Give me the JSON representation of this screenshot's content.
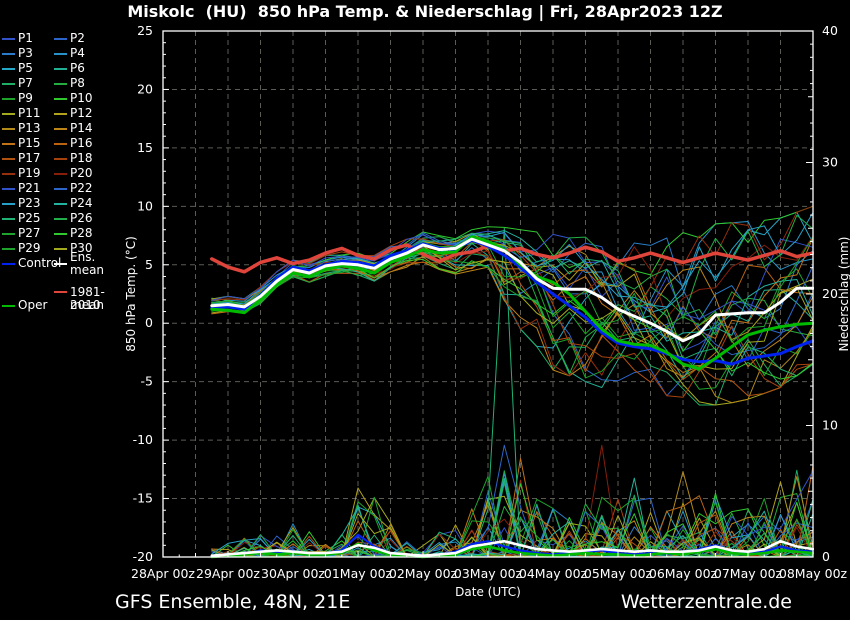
{
  "title": "Miskolc  (HU)  850 hPa Temp. & Niederschlag | Fri, 28Apr2023 12Z",
  "footer": {
    "left": "GFS Ensemble, 48N, 21E",
    "right": "Wetterzentrale.de"
  },
  "legend": {
    "members": [
      {
        "label": "P1",
        "color": "#3252c8"
      },
      {
        "label": "P2",
        "color": "#2d64c8"
      },
      {
        "label": "P3",
        "color": "#2a7cc8"
      },
      {
        "label": "P4",
        "color": "#2792c8"
      },
      {
        "label": "P5",
        "color": "#25a8c8"
      },
      {
        "label": "P6",
        "color": "#21b094"
      },
      {
        "label": "P7",
        "color": "#1fae66"
      },
      {
        "label": "P8",
        "color": "#23ac40"
      },
      {
        "label": "P9",
        "color": "#1da22a"
      },
      {
        "label": "P10",
        "color": "#2fc82f"
      },
      {
        "label": "P11",
        "color": "#a4aa1e"
      },
      {
        "label": "P12",
        "color": "#b2a21c"
      },
      {
        "label": "P13",
        "color": "#b28a1a"
      },
      {
        "label": "P14",
        "color": "#bd8418"
      },
      {
        "label": "P15",
        "color": "#c27315"
      },
      {
        "label": "P16",
        "color": "#bb6212"
      },
      {
        "label": "P17",
        "color": "#b25210"
      },
      {
        "label": "P18",
        "color": "#a6420e"
      },
      {
        "label": "P19",
        "color": "#962f0d"
      },
      {
        "label": "P20",
        "color": "#851f0b"
      },
      {
        "label": "P21",
        "color": "#3252c8"
      },
      {
        "label": "P22",
        "color": "#2d66c8"
      },
      {
        "label": "P23",
        "color": "#27a0c8"
      },
      {
        "label": "P24",
        "color": "#22b2a0"
      },
      {
        "label": "P25",
        "color": "#20b274"
      },
      {
        "label": "P26",
        "color": "#22ae48"
      },
      {
        "label": "P27",
        "color": "#1ea32e"
      },
      {
        "label": "P28",
        "color": "#2fc82f"
      },
      {
        "label": "P29",
        "color": "#1da32b"
      },
      {
        "label": "P30",
        "color": "#a4aa1e"
      }
    ],
    "control": {
      "label": "Control",
      "color": "#0022ee"
    },
    "ens_mean": {
      "label": "Ens. mean",
      "color": "#ffffff"
    },
    "clim": {
      "label_line1": "1981-2010",
      "label_line2": "mean",
      "color": "#e0453c"
    },
    "oper": {
      "label": "Oper",
      "color": "#00bb00"
    }
  },
  "chart_data": {
    "type": "line",
    "title": "Miskolc  (HU)  850 hPa Temp. & Niederschlag | Fri, 28Apr2023 12Z",
    "xlabel": "Date (UTC)",
    "x_tick_labels": [
      "28Apr 00z",
      "29Apr 00z",
      "30Apr 00z",
      "01May 00z",
      "02May 00z",
      "03May 00z",
      "04May 00z",
      "05May 00z",
      "06May 00z",
      "07May 00z",
      "08May 00z"
    ],
    "y_left": {
      "label": "850 hPa Temp. (°C)",
      "min": -20,
      "max": 25,
      "ticks": [
        25,
        20,
        15,
        10,
        5,
        0,
        -5,
        -10,
        -15,
        -20
      ]
    },
    "y_right": {
      "label": "Niederschlag (mm)",
      "min": 0,
      "max": 40,
      "ticks": [
        40,
        30,
        20,
        10,
        0
      ]
    },
    "grid": {
      "x_step_days": 0.5,
      "y_step_degC": 5
    },
    "time_days": {
      "start": 0.75,
      "step": 0.25,
      "count": 38,
      "note": "days after 28Apr2023 00z; 6-hourly points from 28Apr 18z to 08May 00z"
    },
    "series": {
      "ens_mean": [
        1.5,
        1.6,
        1.4,
        2.3,
        3.6,
        4.6,
        4.3,
        4.9,
        5.1,
        5.0,
        4.7,
        5.5,
        6.0,
        6.7,
        6.3,
        6.4,
        7.2,
        6.7,
        6.2,
        5.2,
        3.8,
        3.0,
        2.9,
        2.9,
        2.2,
        1.2,
        0.6,
        0.0,
        -0.7,
        -1.5,
        -0.9,
        0.7,
        0.8,
        0.9,
        0.9,
        1.8,
        3.0,
        3.0
      ],
      "control": [
        1.3,
        1.4,
        1.2,
        2.4,
        3.8,
        4.8,
        4.5,
        5.0,
        5.3,
        5.2,
        4.9,
        5.8,
        6.2,
        6.8,
        6.4,
        6.3,
        7.1,
        6.6,
        5.8,
        4.8,
        3.5,
        2.5,
        1.5,
        0.5,
        -0.8,
        -1.7,
        -2.0,
        -2.2,
        -2.6,
        -3.1,
        -3.3,
        -3.2,
        -3.5,
        -3.0,
        -2.8,
        -2.6,
        -2.0,
        -1.5
      ],
      "oper": [
        1.2,
        1.1,
        0.9,
        2.0,
        3.3,
        4.3,
        4.0,
        4.6,
        4.9,
        4.7,
        4.3,
        5.2,
        5.7,
        6.3,
        6.0,
        6.1,
        7.4,
        7.0,
        6.3,
        5.0,
        4.0,
        3.5,
        2.5,
        1.0,
        -0.5,
        -1.5,
        -1.8,
        -1.9,
        -2.5,
        -3.5,
        -3.9,
        -3.0,
        -2.0,
        -1.0,
        -0.6,
        -0.3,
        -0.1,
        0.0
      ],
      "clim_mean": [
        5.5,
        4.8,
        4.4,
        5.2,
        5.6,
        5.1,
        5.4,
        6.0,
        6.4,
        5.8,
        5.5,
        6.3,
        6.7,
        5.9,
        5.3,
        5.9,
        6.1,
        6.6,
        6.2,
        6.4,
        5.9,
        5.6,
        6.0,
        6.5,
        6.1,
        5.3,
        5.6,
        6.0,
        5.6,
        5.2,
        5.6,
        6.0,
        5.7,
        5.4,
        5.8,
        6.2,
        5.7,
        6.0
      ]
    },
    "envelope": {
      "low": [
        0.8,
        0.9,
        0.7,
        1.6,
        2.9,
        3.9,
        3.5,
        4.0,
        4.2,
        4.0,
        3.6,
        4.4,
        4.8,
        5.2,
        4.6,
        4.2,
        4.5,
        4.8,
        1.5,
        -0.5,
        -2.0,
        -4.0,
        -4.5,
        -5.0,
        -5.5,
        -5.5,
        -5.8,
        -6.0,
        -6.2,
        -6.5,
        -7.0,
        -7.0,
        -6.8,
        -6.5,
        -6.0,
        -5.5,
        -4.5,
        -3.5
      ],
      "high": [
        2.2,
        2.3,
        2.1,
        3.1,
        4.4,
        5.4,
        5.2,
        5.8,
        6.1,
        6.0,
        5.8,
        6.6,
        7.2,
        7.8,
        7.5,
        7.4,
        8.0,
        8.3,
        8.2,
        8.0,
        7.8,
        7.6,
        7.5,
        7.6,
        7.7,
        7.8,
        7.8,
        7.9,
        8.0,
        8.2,
        8.3,
        8.5,
        8.6,
        8.7,
        8.8,
        9.0,
        9.5,
        10.0
      ]
    },
    "precip": {
      "ens_mean": [
        0.1,
        0.2,
        0.3,
        0.4,
        0.5,
        0.4,
        0.3,
        0.3,
        0.4,
        0.9,
        0.7,
        0.3,
        0.2,
        0.1,
        0.2,
        0.3,
        0.8,
        1.0,
        1.2,
        0.9,
        0.6,
        0.5,
        0.4,
        0.5,
        0.6,
        0.5,
        0.4,
        0.5,
        0.4,
        0.4,
        0.5,
        0.8,
        0.5,
        0.4,
        0.6,
        1.2,
        0.8,
        0.6
      ],
      "control": [
        0.1,
        0.2,
        0.2,
        0.5,
        0.4,
        0.3,
        0.2,
        0.3,
        0.5,
        1.7,
        0.8,
        0.3,
        0.2,
        0.1,
        0.2,
        0.4,
        1.0,
        1.2,
        0.8,
        0.5,
        0.3,
        0.2,
        0.3,
        0.4,
        0.5,
        0.3,
        0.2,
        0.3,
        0.2,
        0.3,
        0.6,
        0.9,
        0.4,
        0.3,
        0.4,
        0.8,
        0.5,
        0.4
      ],
      "oper": [
        0.0,
        0.1,
        0.2,
        0.3,
        0.2,
        0.3,
        0.2,
        0.2,
        0.3,
        1.0,
        0.5,
        0.2,
        0.1,
        0.0,
        0.1,
        0.2,
        0.6,
        0.8,
        0.5,
        0.3,
        0.2,
        0.1,
        0.2,
        0.3,
        0.2,
        0.2,
        0.1,
        0.2,
        0.3,
        0.2,
        0.4,
        0.6,
        0.3,
        0.2,
        0.3,
        0.5,
        0.4,
        0.3
      ],
      "activity": [
        0.5,
        1.0,
        1.5,
        1.5,
        2.0,
        2.0,
        1.5,
        1.0,
        1.5,
        4.5,
        4.0,
        2.0,
        1.0,
        1.0,
        1.5,
        2.0,
        3.0,
        5.0,
        6.0,
        5.0,
        4.0,
        3.0,
        3.0,
        3.5,
        4.0,
        4.0,
        4.0,
        3.5,
        3.0,
        4.0,
        4.0,
        4.0,
        3.5,
        3.0,
        3.5,
        4.5,
        5.0,
        6.0
      ],
      "spikes": [
        {
          "member": 24,
          "i": 18,
          "mm": 25.0
        },
        {
          "member": 21,
          "i": 18,
          "mm": 8.5
        },
        {
          "member": 14,
          "i": 19,
          "mm": 7.5
        },
        {
          "member": 19,
          "i": 24,
          "mm": 8.5
        },
        {
          "member": 23,
          "i": 26,
          "mm": 6.0
        },
        {
          "member": 12,
          "i": 29,
          "mm": 6.5
        },
        {
          "member": 3,
          "i": 31,
          "mm": 4.3
        },
        {
          "member": 13,
          "i": 33,
          "mm": 3.0
        },
        {
          "member": 11,
          "i": 35,
          "mm": 5.7
        },
        {
          "member": 6,
          "i": 36,
          "mm": 6.6
        },
        {
          "member": 8,
          "i": 9,
          "mm": 4.2
        },
        {
          "member": 4,
          "i": 9,
          "mm": 3.8
        },
        {
          "member": 11,
          "i": 10,
          "mm": 3.2
        },
        {
          "member": 1,
          "i": 4,
          "mm": 1.6
        }
      ]
    },
    "colors": {
      "ens_mean": "#ffffff",
      "control": "#0022ee",
      "oper": "#00bb00",
      "clim_mean": "#e0453c",
      "grid": "#5c5c54",
      "axis": "#ffffff",
      "background": "#000000"
    }
  }
}
